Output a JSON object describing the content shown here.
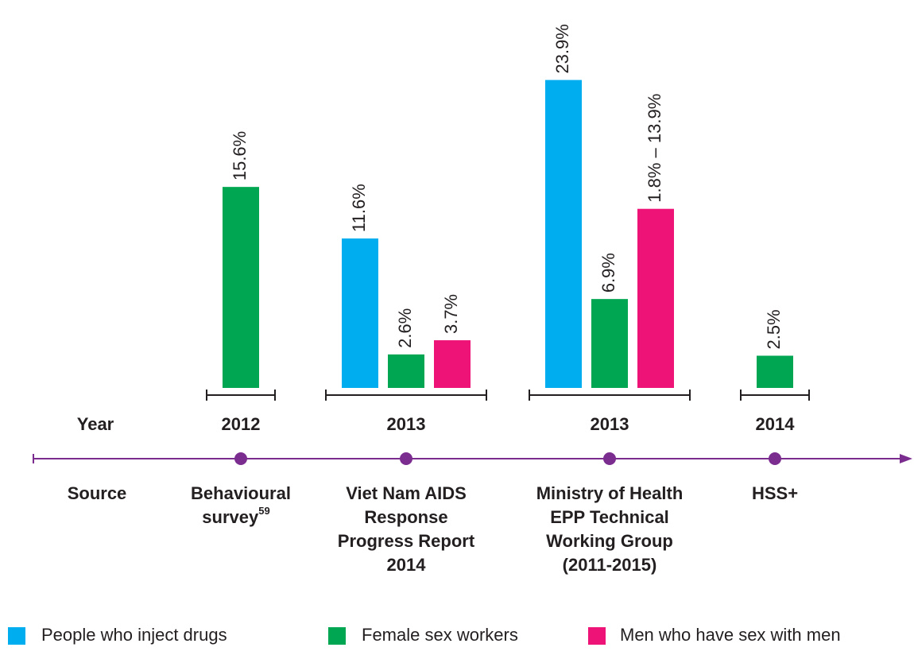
{
  "chart_data": {
    "type": "bar",
    "year_label": "Year",
    "source_label": "Source",
    "categories": [
      "2012",
      "2013",
      "2013",
      "2014"
    ],
    "sources": [
      {
        "lines": [
          "Behavioural",
          "survey"
        ],
        "note": "59"
      },
      {
        "lines": [
          "Viet Nam AIDS",
          "Response",
          "Progress Report",
          "2014"
        ]
      },
      {
        "lines": [
          "Ministry of Health",
          "EPP Technical",
          "Working Group",
          "(2011-2015)"
        ]
      },
      {
        "lines": [
          "HSS+"
        ]
      }
    ],
    "series": [
      {
        "name": "People who inject drugs",
        "color": "#00aeef",
        "values": [
          null,
          11.6,
          23.9,
          null
        ],
        "value_labels": [
          null,
          "11.6%",
          "23.9%",
          null
        ]
      },
      {
        "name": "Female sex workers",
        "color": "#00a651",
        "values": [
          15.6,
          2.6,
          6.9,
          2.5
        ],
        "value_labels": [
          "15.6%",
          "2.6%",
          "6.9%",
          "2.5%"
        ]
      },
      {
        "name": "Men who have sex with men",
        "color": "#ed1377",
        "values": [
          null,
          3.7,
          13.9,
          null
        ],
        "value_labels": [
          null,
          "3.7%",
          "1.8% – 13.9%",
          null
        ]
      }
    ],
    "ylim": [
      0,
      24
    ],
    "timeline_color": "#7b2c8f"
  }
}
